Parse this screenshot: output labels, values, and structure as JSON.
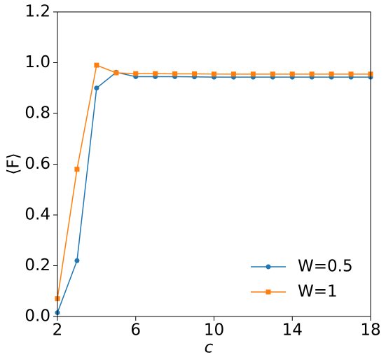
{
  "chart_data": {
    "type": "line",
    "xlabel": "c",
    "ylabel": "⟨F⟩",
    "x": [
      2,
      3,
      4,
      5,
      6,
      7,
      8,
      9,
      10,
      11,
      12,
      13,
      14,
      15,
      16,
      17,
      18
    ],
    "series": [
      {
        "name": "W=0.5",
        "color": "#1f77b4",
        "marker": "circle",
        "values": [
          0.015,
          0.22,
          0.9,
          0.962,
          0.945,
          0.945,
          0.945,
          0.944,
          0.943,
          0.943,
          0.943,
          0.943,
          0.943,
          0.943,
          0.943,
          0.943,
          0.943
        ]
      },
      {
        "name": "W=1",
        "color": "#ff7f0e",
        "marker": "square",
        "values": [
          0.07,
          0.58,
          0.99,
          0.96,
          0.957,
          0.957,
          0.956,
          0.956,
          0.955,
          0.955,
          0.955,
          0.955,
          0.955,
          0.955,
          0.955,
          0.955,
          0.955
        ]
      }
    ],
    "xlim": [
      2,
      18
    ],
    "xticks": [
      2,
      6,
      10,
      14,
      18
    ],
    "ylim": [
      0,
      1.2
    ],
    "yticks": [
      {
        "value": 0,
        "label": "0.0"
      },
      0.2,
      0.4,
      0.6,
      0.8,
      {
        "value": 1,
        "label": "1.0"
      },
      1.2
    ],
    "legend": "lower right",
    "grid": false
  }
}
